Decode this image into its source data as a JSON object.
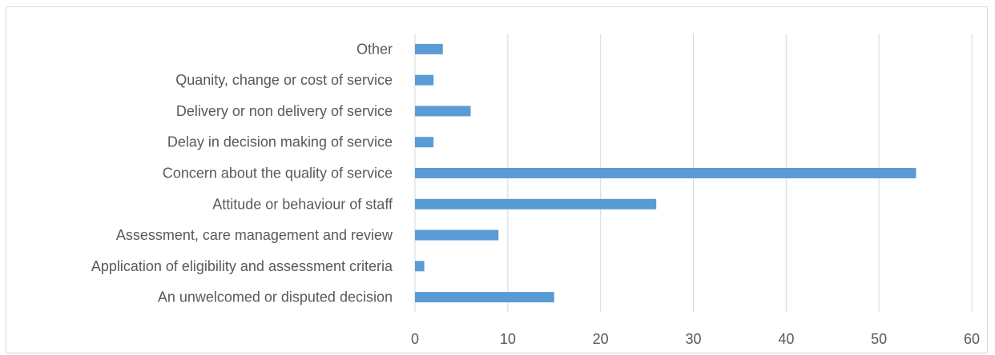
{
  "chart_data": {
    "type": "bar",
    "orientation": "horizontal",
    "title": "",
    "xlabel": "",
    "ylabel": "",
    "categories": [
      "An unwelcomed or disputed decision",
      "Application of eligibility and assessment criteria",
      "Assessment, care management and review",
      "Attitude or behaviour of staff",
      "Concern about the quality of service",
      "Delay in decision making of service",
      "Delivery or non delivery of service",
      "Quanity, change or cost of service",
      "Other"
    ],
    "values": [
      15,
      1,
      9,
      26,
      54,
      2,
      6,
      2,
      3
    ],
    "xlim": [
      0,
      60
    ],
    "xticks": [
      0,
      10,
      20,
      30,
      40,
      50,
      60
    ],
    "grid": "vertical",
    "legend": "none",
    "colors": {
      "bar": "#5b9bd5",
      "grid": "#d9d9d9",
      "text": "#595959"
    }
  }
}
